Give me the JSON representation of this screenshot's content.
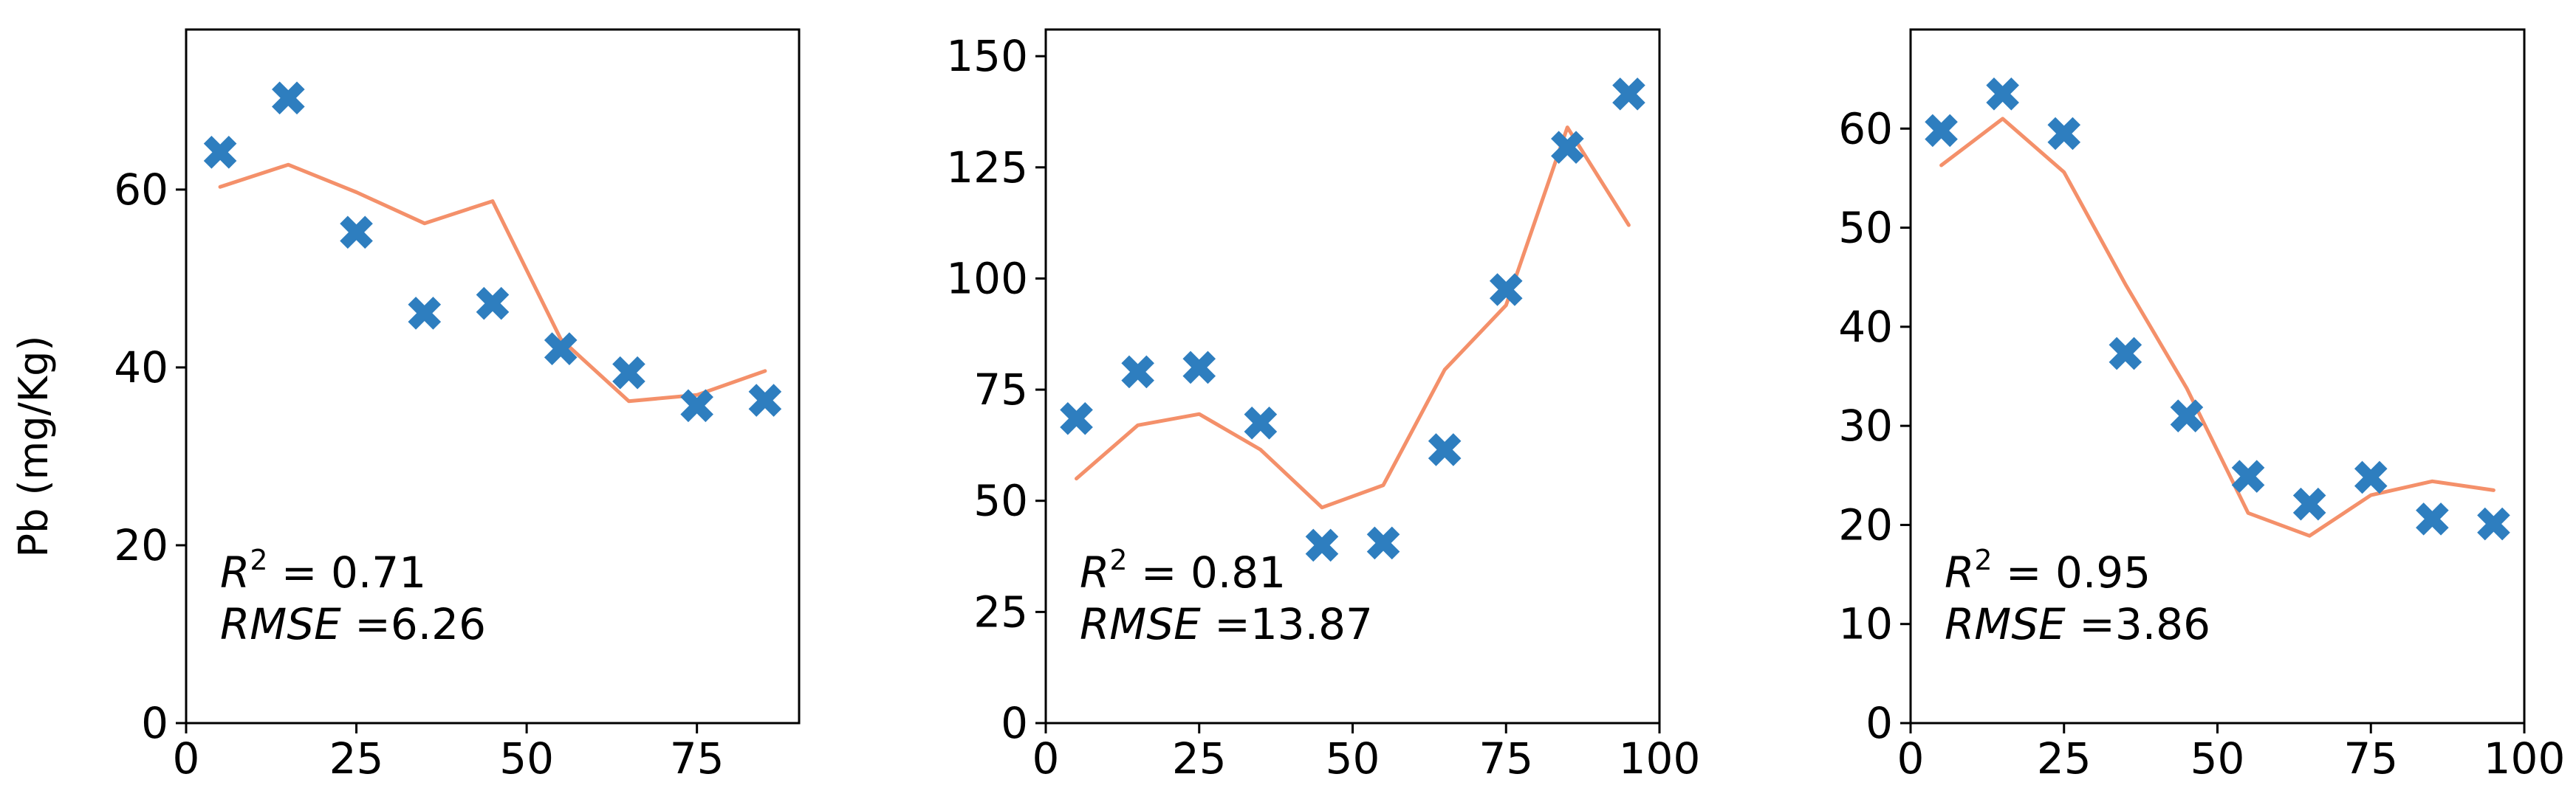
{
  "ylabel": "Pb (mg/Kg)",
  "colors": {
    "marker": "#2e7ebf",
    "line": "#f4906a",
    "axis": "#000000"
  },
  "chart_data": [
    {
      "type": "scatter",
      "xlim": [
        0,
        90
      ],
      "ylim": [
        0,
        78
      ],
      "xticks": [
        0,
        25,
        50,
        75
      ],
      "yticks": [
        0,
        20,
        40,
        60
      ],
      "series": [
        {
          "kind": "observed",
          "marker": "x",
          "x": [
            5,
            15,
            25,
            35,
            45,
            55,
            65,
            75,
            85
          ],
          "y": [
            64.2,
            70.3,
            55.2,
            46.1,
            47.2,
            42.1,
            39.4,
            35.7,
            36.3
          ]
        },
        {
          "kind": "predicted",
          "marker": "line",
          "x": [
            5,
            15,
            25,
            35,
            45,
            55,
            65,
            75,
            85
          ],
          "y": [
            60.3,
            62.8,
            59.7,
            56.2,
            58.7,
            43.2,
            36.2,
            36.9,
            39.6
          ]
        }
      ],
      "annotation": {
        "r2_label": "R",
        "r2_sup": "2",
        "r2_value": " = 0.71",
        "rmse_label": "RMSE",
        "rmse_value": " =6.26"
      }
    },
    {
      "type": "scatter",
      "xlim": [
        0,
        100
      ],
      "ylim": [
        0,
        156
      ],
      "xticks": [
        0,
        25,
        50,
        75,
        100
      ],
      "yticks": [
        0,
        25,
        50,
        75,
        100,
        125,
        150
      ],
      "series": [
        {
          "kind": "observed",
          "marker": "x",
          "x": [
            5,
            15,
            25,
            35,
            45,
            55,
            65,
            75,
            85,
            95
          ],
          "y": [
            68.5,
            79,
            80,
            67.5,
            40,
            40.5,
            61.5,
            97.5,
            129.5,
            141.5
          ]
        },
        {
          "kind": "predicted",
          "marker": "line",
          "x": [
            5,
            15,
            25,
            35,
            45,
            55,
            65,
            75,
            85,
            95
          ],
          "y": [
            55,
            67,
            69.5,
            61.5,
            48.5,
            53.5,
            79.5,
            94,
            134,
            112
          ]
        }
      ],
      "annotation": {
        "r2_label": "R",
        "r2_sup": "2",
        "r2_value": " = 0.81",
        "rmse_label": "RMSE",
        "rmse_value": " =13.87"
      }
    },
    {
      "type": "scatter",
      "xlim": [
        0,
        100
      ],
      "ylim": [
        0,
        70
      ],
      "xticks": [
        0,
        25,
        50,
        75,
        100
      ],
      "yticks": [
        0,
        10,
        20,
        30,
        40,
        50,
        60
      ],
      "series": [
        {
          "kind": "observed",
          "marker": "x",
          "x": [
            5,
            15,
            25,
            35,
            45,
            55,
            65,
            75,
            85,
            95
          ],
          "y": [
            59.8,
            63.5,
            59.5,
            37.3,
            31,
            24.9,
            22.1,
            24.8,
            20.6,
            20.1
          ]
        },
        {
          "kind": "predicted",
          "marker": "line",
          "x": [
            5,
            15,
            25,
            35,
            45,
            55,
            65,
            75,
            85,
            95
          ],
          "y": [
            56.3,
            61,
            55.6,
            44.3,
            33.8,
            21.2,
            18.9,
            23,
            24.4,
            23.5
          ]
        }
      ],
      "annotation": {
        "r2_label": "R",
        "r2_sup": "2",
        "r2_value": " = 0.95",
        "rmse_label": "RMSE",
        "rmse_value": " =3.86"
      }
    }
  ]
}
